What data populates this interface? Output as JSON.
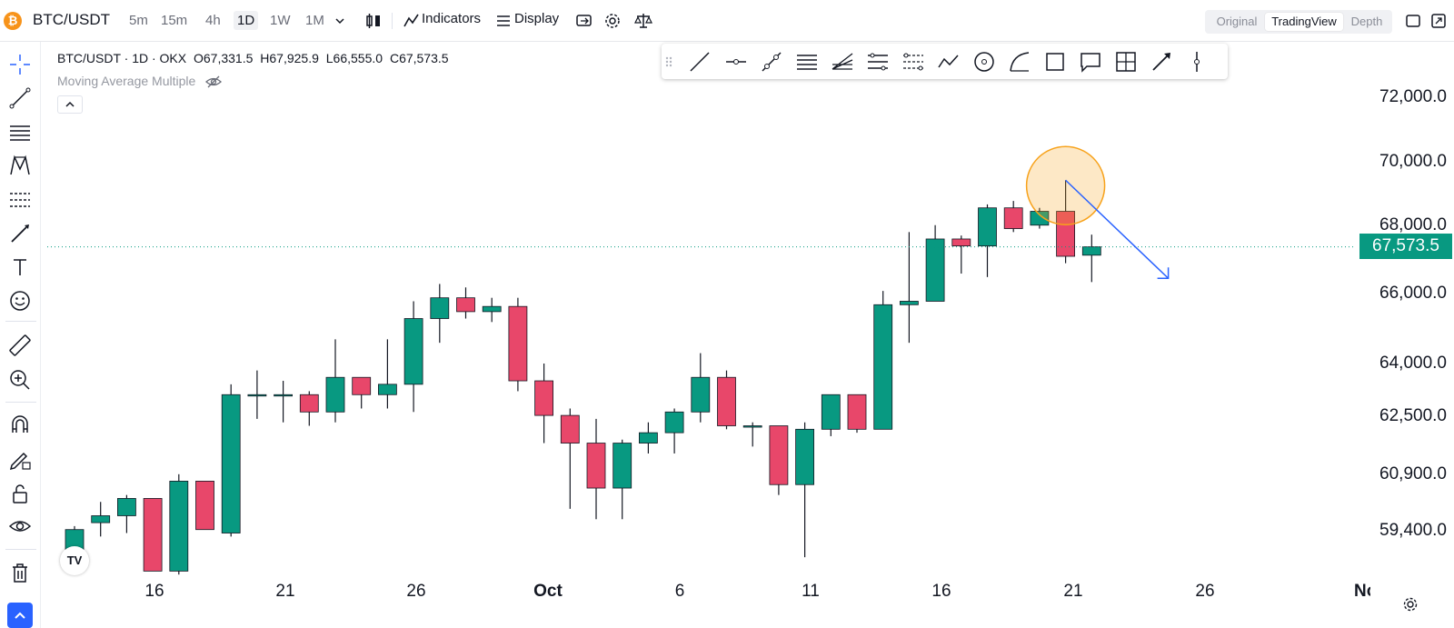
{
  "header": {
    "symbol": "BTC/USDT",
    "symbol_icon_glyph": "₿",
    "timeframes": [
      {
        "label": "5m",
        "active": false
      },
      {
        "label": "15m",
        "active": false
      },
      {
        "label": "4h",
        "active": false
      },
      {
        "label": "1D",
        "active": true
      },
      {
        "label": "1W",
        "active": false
      },
      {
        "label": "1M",
        "active": false
      }
    ],
    "indicators_label": "Indicators",
    "display_label": "Display",
    "view_modes": [
      {
        "label": "Original",
        "active": false
      },
      {
        "label": "TradingView",
        "active": true
      },
      {
        "label": "Depth",
        "active": false
      }
    ]
  },
  "legend": {
    "title": "BTC/USDT · 1D · OKX",
    "open": "O67,331.5",
    "high": "H67,925.9",
    "low": "L66,555.0",
    "close": "C67,573.5",
    "indicator": "Moving Average Multiple"
  },
  "price_axis": [
    "72,000.0",
    "70,000.0",
    "68,000.0",
    "66,000.0",
    "64,000.0",
    "62,500.0",
    "60,900.0",
    "59,400.0"
  ],
  "current_price": "67,573.5",
  "time_axis": [
    {
      "label": "16",
      "bold": false
    },
    {
      "label": "21",
      "bold": false
    },
    {
      "label": "26",
      "bold": false
    },
    {
      "label": "Oct",
      "bold": true
    },
    {
      "label": "6",
      "bold": false
    },
    {
      "label": "11",
      "bold": false
    },
    {
      "label": "16",
      "bold": false
    },
    {
      "label": "21",
      "bold": false
    },
    {
      "label": "26",
      "bold": false
    },
    {
      "label": "No",
      "bold": true
    }
  ],
  "logo_text": "TV",
  "colors": {
    "up": "#089981",
    "down": "#e8476a",
    "accent": "#2962ff",
    "highlight": "#f7a21b"
  },
  "chart_data": {
    "type": "candlestick",
    "symbol": "BTC/USDT",
    "interval": "1D",
    "y_range": [
      58000,
      73500
    ],
    "candles": [
      {
        "o": 58700,
        "h": 59500,
        "l": 58200,
        "c": 59400
      },
      {
        "o": 59600,
        "h": 60200,
        "l": 59200,
        "c": 59800
      },
      {
        "o": 59800,
        "h": 60400,
        "l": 59300,
        "c": 60300
      },
      {
        "o": 60300,
        "h": 60300,
        "l": 58200,
        "c": 58200
      },
      {
        "o": 58200,
        "h": 61000,
        "l": 58100,
        "c": 60800
      },
      {
        "o": 60800,
        "h": 60800,
        "l": 59400,
        "c": 59400
      },
      {
        "o": 59300,
        "h": 63600,
        "l": 59200,
        "c": 63300
      },
      {
        "o": 63300,
        "h": 64000,
        "l": 62600,
        "c": 63300
      },
      {
        "o": 63300,
        "h": 63700,
        "l": 62500,
        "c": 63300
      },
      {
        "o": 63300,
        "h": 63400,
        "l": 62400,
        "c": 62800
      },
      {
        "o": 62800,
        "h": 64900,
        "l": 62500,
        "c": 63800
      },
      {
        "o": 63800,
        "h": 63800,
        "l": 62900,
        "c": 63300
      },
      {
        "o": 63300,
        "h": 64900,
        "l": 62900,
        "c": 63600
      },
      {
        "o": 63600,
        "h": 66000,
        "l": 62800,
        "c": 65500
      },
      {
        "o": 65500,
        "h": 66500,
        "l": 64800,
        "c": 66100
      },
      {
        "o": 66100,
        "h": 66400,
        "l": 65500,
        "c": 65700
      },
      {
        "o": 65700,
        "h": 66100,
        "l": 65400,
        "c": 65850
      },
      {
        "o": 65850,
        "h": 66100,
        "l": 63400,
        "c": 63700
      },
      {
        "o": 63700,
        "h": 64200,
        "l": 61900,
        "c": 62700
      },
      {
        "o": 62700,
        "h": 62900,
        "l": 60000,
        "c": 61900
      },
      {
        "o": 61900,
        "h": 62600,
        "l": 59700,
        "c": 60600
      },
      {
        "o": 60600,
        "h": 62000,
        "l": 59700,
        "c": 61900
      },
      {
        "o": 61900,
        "h": 62500,
        "l": 61600,
        "c": 62200
      },
      {
        "o": 62200,
        "h": 62900,
        "l": 61600,
        "c": 62800
      },
      {
        "o": 62800,
        "h": 64500,
        "l": 62500,
        "c": 63800
      },
      {
        "o": 63800,
        "h": 64000,
        "l": 62300,
        "c": 62400
      },
      {
        "o": 62400,
        "h": 62500,
        "l": 61800,
        "c": 62400
      },
      {
        "o": 62400,
        "h": 62400,
        "l": 60400,
        "c": 60700
      },
      {
        "o": 60700,
        "h": 62500,
        "l": 58600,
        "c": 62300
      },
      {
        "o": 62300,
        "h": 63300,
        "l": 62100,
        "c": 63300
      },
      {
        "o": 63300,
        "h": 63300,
        "l": 62200,
        "c": 62300
      },
      {
        "o": 62300,
        "h": 66300,
        "l": 62300,
        "c": 65900
      },
      {
        "o": 65900,
        "h": 68000,
        "l": 64800,
        "c": 66000
      },
      {
        "o": 66000,
        "h": 68200,
        "l": 66000,
        "c": 67800
      },
      {
        "o": 67800,
        "h": 67900,
        "l": 66800,
        "c": 67600
      },
      {
        "o": 67600,
        "h": 68800,
        "l": 66700,
        "c": 68700
      },
      {
        "o": 68700,
        "h": 68900,
        "l": 68000,
        "c": 68100
      },
      {
        "o": 68200,
        "h": 68700,
        "l": 68100,
        "c": 68600
      },
      {
        "o": 68600,
        "h": 69500,
        "l": 67100,
        "c": 67300
      },
      {
        "o": 67331.5,
        "h": 67925.9,
        "l": 66555.0,
        "c": 67573.5
      }
    ]
  }
}
